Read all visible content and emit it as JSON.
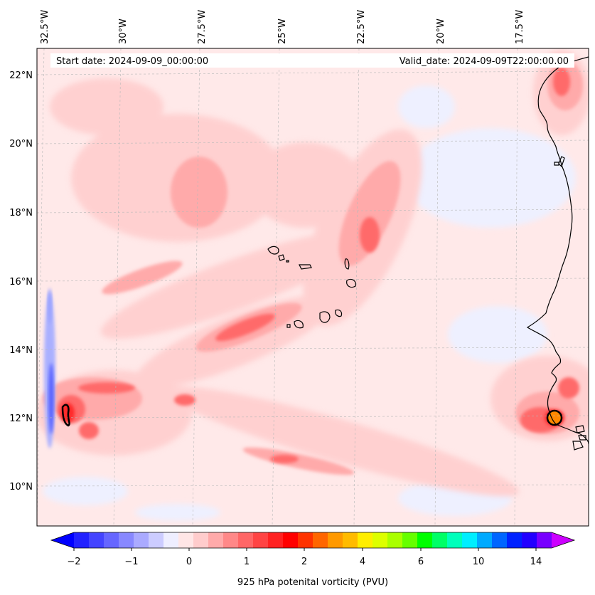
{
  "map": {
    "start_date": "Start date: 2024-09-09_00:00:00",
    "valid_date": "Valid_date: 2024-09-09T22:00:00.00",
    "colorbar_label": "925 hPa potenital vorticity (PVU)",
    "lon_labels": [
      "32.5°W",
      "30°W",
      "27.5°W",
      "25°W",
      "22.5°W",
      "20°W",
      "17.5°W"
    ],
    "lat_labels": [
      "22°N",
      "20°N",
      "18°N",
      "16°N",
      "14°N",
      "12°N",
      "10°N"
    ],
    "colorbar_ticks": [
      "−2",
      "−1",
      "0",
      "1",
      "2",
      "4",
      "6",
      "10",
      "14"
    ],
    "colors": {
      "land_outline": "#000000",
      "low_pv": "#0000ff",
      "high_pv": "#ff0000",
      "background_pv": "#ffe8e8"
    }
  },
  "colorbar": {
    "colors": [
      "#0000ff",
      "#2222ff",
      "#4444ff",
      "#6666ff",
      "#8888ff",
      "#aaaaff",
      "#ccccff",
      "#eeeeff",
      "#ffe6e6",
      "#ffcccc",
      "#ffaaaa",
      "#ff8888",
      "#ff6666",
      "#ff4444",
      "#ff2222",
      "#ff0000",
      "#ff3300",
      "#ff6600",
      "#ff9900",
      "#ffbb00",
      "#ffee00",
      "#ddff00",
      "#aaff00",
      "#66ff00",
      "#00ff00",
      "#00ff66",
      "#00ffbb",
      "#00eeff",
      "#00aaff",
      "#0066ff",
      "#0022ff",
      "#2200ff",
      "#7700ff",
      "#cc00ff"
    ]
  }
}
